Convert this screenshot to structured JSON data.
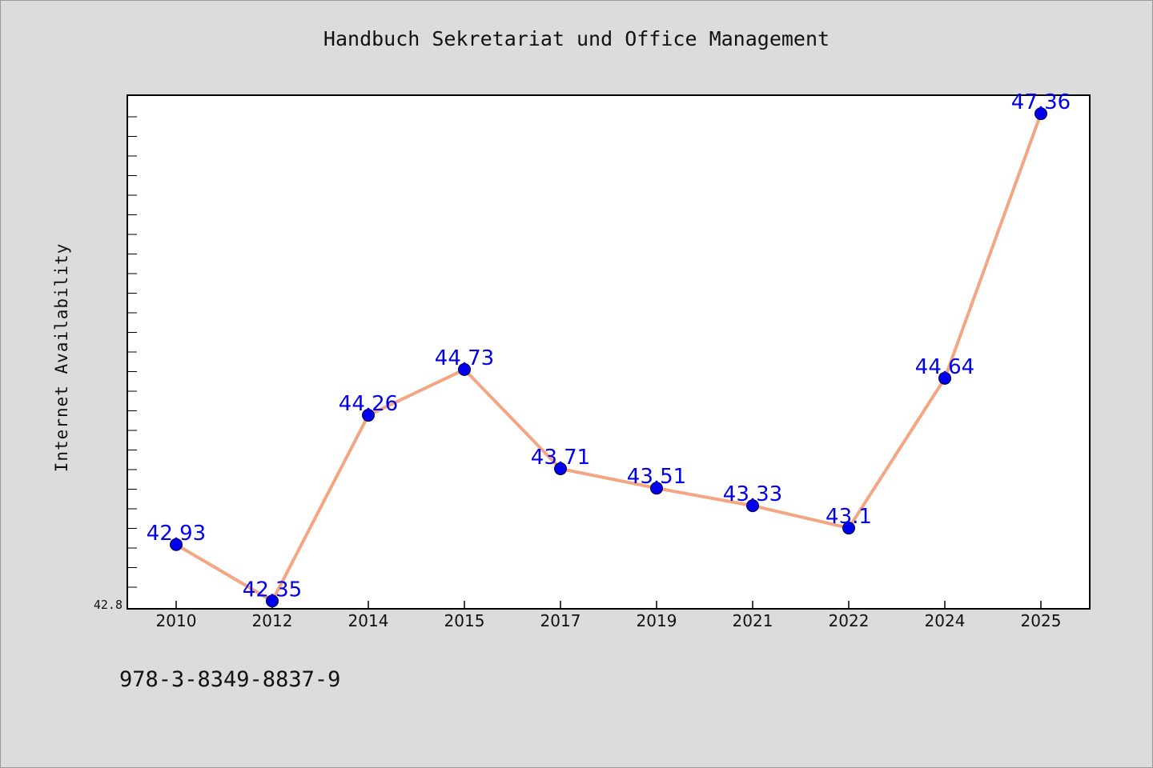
{
  "title": "Handbuch Sekretariat und Office Management",
  "footer_text": "978-3-8349-8837-9",
  "chart_data": {
    "type": "line",
    "title": "Handbuch Sekretariat und Office Management",
    "xlabel": "",
    "ylabel": "Internet Availability",
    "categories": [
      "2010",
      "2012",
      "2014",
      "2015",
      "2017",
      "2019",
      "2021",
      "2022",
      "2024",
      "2025"
    ],
    "series": [
      {
        "values": [
          42.93,
          42.35,
          44.26,
          44.73,
          43.71,
          43.51,
          43.33,
          43.1,
          44.64,
          47.36
        ],
        "labels": [
          "42.93",
          "42.35",
          "44.26",
          "44.73",
          "43.71",
          "43.51",
          "43.33",
          "43.1",
          "44.64",
          "47.36"
        ]
      }
    ],
    "ylim": [
      42.27,
      47.55
    ],
    "y_tick_labels": [
      "42.8"
    ],
    "grid": false,
    "line_color": "#f4a582",
    "marker_color": "#0000ee",
    "label_color": "#0000ee"
  }
}
